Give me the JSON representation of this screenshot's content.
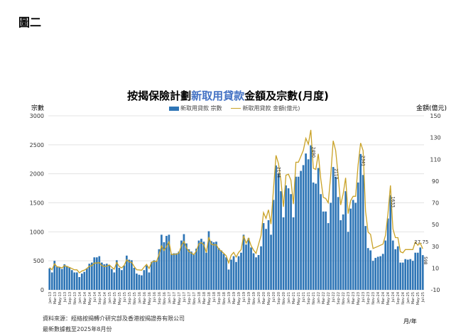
{
  "figure_label": "圖二",
  "chart_data": {
    "type": "bar+line",
    "title_parts": [
      "按揭保險計劃",
      "新取用貸款",
      "金額及宗數(月度)"
    ],
    "ylabel_left": "宗數",
    "ylabel_right": "金額(億元)",
    "xlabel": "月/年",
    "ylim_left": [
      0,
      3000
    ],
    "yticks_left": [
      0,
      500,
      1000,
      1500,
      2000,
      2500,
      3000
    ],
    "ylim_right": [
      -10,
      150
    ],
    "yticks_right": [
      -10,
      10,
      30,
      50,
      70,
      90,
      110,
      130,
      150
    ],
    "legend": {
      "placement": "top-center",
      "bar": "新取用貸款 宗數",
      "line": "新取用貸款 金額(億元)"
    },
    "colors": {
      "bar": "#2e75b6",
      "line": "#c9a227",
      "title_accent": "#4472c4"
    },
    "start_year": 2013,
    "month_names": [
      "Jan",
      "Feb",
      "Mar",
      "Apr",
      "May",
      "Jun",
      "Jul",
      "Aug",
      "Sep",
      "Oct",
      "Nov",
      "Dec"
    ],
    "series": [
      {
        "name": "新取用貸款 宗數",
        "values": [
          370,
          300,
          500,
          400,
          390,
          360,
          440,
          410,
          380,
          340,
          300,
          300,
          220,
          280,
          310,
          370,
          450,
          470,
          560,
          560,
          580,
          470,
          440,
          450,
          430,
          360,
          300,
          510,
          380,
          340,
          420,
          590,
          520,
          510,
          380,
          280,
          260,
          250,
          340,
          420,
          300,
          480,
          510,
          500,
          700,
          950,
          820,
          930,
          950,
          620,
          630,
          630,
          660,
          850,
          960,
          800,
          700,
          660,
          620,
          710,
          850,
          880,
          830,
          640,
          1010,
          840,
          820,
          830,
          720,
          680,
          620,
          560,
          350,
          520,
          580,
          480,
          580,
          640,
          950,
          780,
          890,
          730,
          630,
          560,
          600,
          750,
          1150,
          1050,
          1200,
          950,
          1550,
          2144,
          2000,
          1700,
          1250,
          1800,
          1750,
          1650,
          1250,
          1950,
          1950,
          2050,
          2150,
          2350,
          2250,
          2490,
          1850,
          1830,
          2100,
          1650,
          1350,
          1350,
          1150,
          1500,
          2117,
          1950,
          1600,
          1200,
          1300,
          1700,
          1000,
          1400,
          1550,
          1500,
          1850,
          2341,
          1980,
          1100,
          720,
          680,
          500,
          550,
          570,
          580,
          620,
          850,
          1230,
          1633,
          850,
          700,
          750,
          470,
          470,
          530,
          520,
          530,
          500,
          640,
          640,
          730,
          598
        ]
      },
      {
        "name": "新取用貸款 金額(億元)",
        "values": [
          10.4,
          8.4,
          14,
          11.2,
          10.9,
          10.1,
          12.3,
          11.5,
          10.6,
          9.5,
          8.4,
          8.4,
          5.7,
          7.3,
          8.1,
          9.6,
          11.7,
          12.2,
          14.6,
          14.6,
          15.1,
          12.2,
          11.4,
          11.7,
          12.9,
          10.8,
          9,
          15.3,
          11.4,
          10.2,
          12.6,
          17.7,
          15.6,
          15.3,
          11.4,
          8.4,
          8.3,
          8,
          10.9,
          13.4,
          9.6,
          15.4,
          16.3,
          16,
          22.4,
          30.4,
          26.2,
          29.8,
          34.2,
          22.3,
          22.7,
          22.7,
          23.8,
          30.6,
          34.6,
          28.8,
          25.2,
          23.8,
          22.3,
          25.6,
          32.3,
          33.4,
          31.5,
          24.3,
          38.4,
          31.9,
          31.2,
          31.5,
          27.4,
          25.8,
          23.6,
          21.3,
          14.7,
          21.8,
          24.4,
          20.2,
          24.4,
          26.9,
          39.9,
          32.8,
          37.4,
          30.7,
          26.5,
          23.5,
          31.8,
          39.8,
          61,
          55.7,
          63.6,
          50.4,
          82.2,
          113.6,
          106,
          90.1,
          66.3,
          95.4,
          96.3,
          90.8,
          68.8,
          107.3,
          107.3,
          112.8,
          118.3,
          129.3,
          123.8,
          137,
          101.8,
          100.7,
          115,
          92,
          75,
          74,
          70,
          95,
          127,
          118,
          95,
          68,
          78,
          93,
          60,
          72,
          76,
          76,
          105,
          125,
          118,
          62,
          43,
          41,
          28,
          29,
          30,
          31,
          32,
          40,
          60,
          86,
          46,
          38,
          38,
          25,
          24,
          27,
          27,
          27,
          27,
          34,
          31,
          33,
          27.75
        ]
      }
    ],
    "bar_labels": [
      {
        "index": 91,
        "text": "2144"
      },
      {
        "index": 105,
        "text": "2490"
      },
      {
        "index": 114,
        "text": "2117"
      },
      {
        "index": 125,
        "text": "2341"
      },
      {
        "index": 137,
        "text": "1633"
      },
      {
        "index": 150,
        "text": "598"
      }
    ],
    "line_labels": [
      {
        "index": 150,
        "text": "27.75"
      }
    ]
  },
  "footer": {
    "source": "資料來源：經絡按揭轉介研究部及香港按揭證券有限公司",
    "updated": "最新數據截至2025年8月份"
  }
}
